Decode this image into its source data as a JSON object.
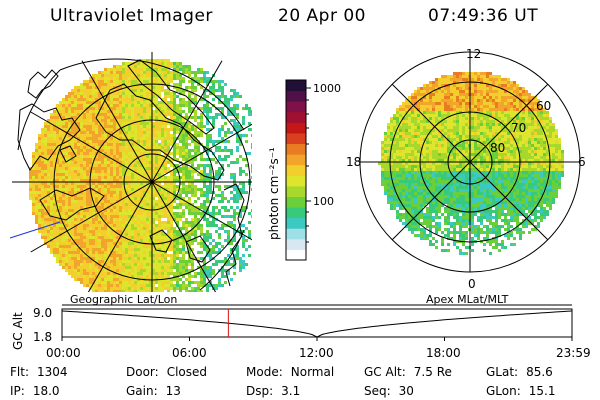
{
  "header": {
    "instrument": "Ultraviolet Imager",
    "date": "20 Apr 00",
    "time": "07:49:36 UT"
  },
  "left_panel": {
    "label": "Geographic Lat/Lon"
  },
  "right_panel": {
    "label": "Apex MLat/MLT",
    "mlt_labels": {
      "top": "12",
      "left": "18",
      "right": "6",
      "bottom": "0"
    },
    "lat_labels": [
      "60",
      "70",
      "80"
    ]
  },
  "colorbar": {
    "unit_label": "photon cm⁻²s⁻¹",
    "tick_labels": [
      "1000",
      "100"
    ],
    "colors": [
      "#ffffff",
      "#d7e8f2",
      "#9fe0e8",
      "#3cc9c2",
      "#39c97a",
      "#6bcf3a",
      "#a9d82c",
      "#dde52c",
      "#f2cf2d",
      "#f2a52a",
      "#e97b22",
      "#d94020",
      "#c41818",
      "#a01030",
      "#801048",
      "#501048",
      "#201038"
    ]
  },
  "timeline": {
    "axis_label": "GC Alt",
    "y_ticks": [
      "9.0",
      "1.8"
    ],
    "x_ticks": [
      "00:00",
      "06:00",
      "12:00",
      "18:00",
      "23:59"
    ],
    "current_time_fraction": 0.3262
  },
  "footer": {
    "row1": [
      {
        "key": "Flt:",
        "value": "1304"
      },
      {
        "key": "Door:",
        "value": "Closed"
      },
      {
        "key": "Mode:",
        "value": "Normal"
      },
      {
        "key": "GC Alt:",
        "value": "7.5 Re"
      },
      {
        "key": "GLat:",
        "value": "85.6"
      }
    ],
    "row2": [
      {
        "key": "IP:",
        "value": "18.0"
      },
      {
        "key": "Gain:",
        "value": "13"
      },
      {
        "key": "Dsp:",
        "value": "3.1"
      },
      {
        "key": "Seq:",
        "value": "30"
      },
      {
        "key": "GLon:",
        "value": "15.1"
      }
    ]
  }
}
